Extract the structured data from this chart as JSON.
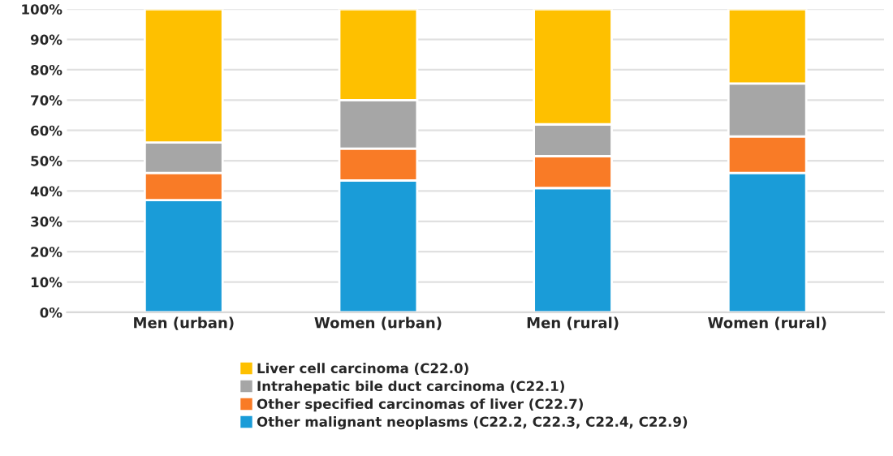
{
  "chart_data": {
    "type": "bar",
    "stacked": true,
    "categories": [
      "Men (urban)",
      "Women (urban)",
      "Men (rural)",
      "Women (rural)"
    ],
    "series": [
      {
        "name": "Other malignant neoplasms (C22.2, C22.3, C22.4, C22.9)",
        "color": "#1a9cd8",
        "values": [
          37,
          43.5,
          41,
          46
        ]
      },
      {
        "name": "Other specified carcinomas of liver (C22.7)",
        "color": "#f97b26",
        "values": [
          9,
          10.5,
          10.5,
          12
        ]
      },
      {
        "name": "Intrahepatic bile duct carcinoma (C22.1)",
        "color": "#a6a6a6",
        "values": [
          10,
          16,
          10.5,
          17.5
        ]
      },
      {
        "name": "Liver cell carcinoma (C22.0)",
        "color": "#fec000",
        "values": [
          44,
          30,
          38,
          24.5
        ]
      }
    ],
    "ylim": [
      0,
      100
    ],
    "yticks": [
      {
        "value": 0,
        "label": "0%"
      },
      {
        "value": 10,
        "label": "10%"
      },
      {
        "value": 20,
        "label": "20%"
      },
      {
        "value": 30,
        "label": "30%"
      },
      {
        "value": 40,
        "label": "40%"
      },
      {
        "value": 50,
        "label": "50%"
      },
      {
        "value": 60,
        "label": "60%"
      },
      {
        "value": 70,
        "label": "70%"
      },
      {
        "value": 80,
        "label": "80%"
      },
      {
        "value": 90,
        "label": "90%"
      },
      {
        "value": 100,
        "label": "100%"
      }
    ],
    "grid": "y",
    "legend": "bottom"
  }
}
